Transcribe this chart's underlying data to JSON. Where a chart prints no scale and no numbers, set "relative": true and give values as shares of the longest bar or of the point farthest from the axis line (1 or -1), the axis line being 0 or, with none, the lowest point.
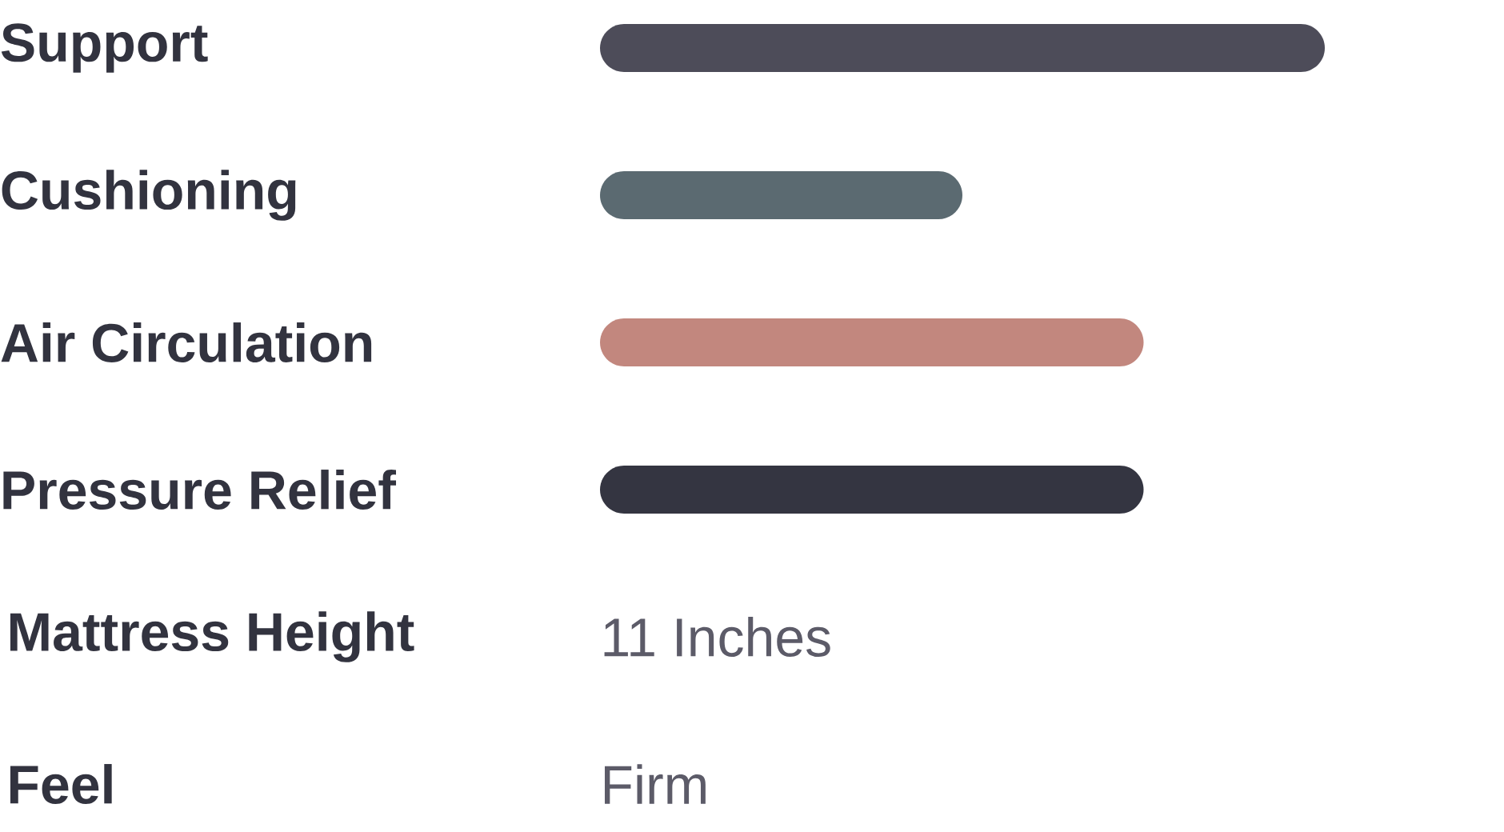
{
  "chart_data": {
    "type": "bar",
    "orientation": "horizontal",
    "relative": true,
    "categories": [
      "Support",
      "Cushioning",
      "Air Circulation",
      "Pressure Relief"
    ],
    "values": [
      1,
      0.5,
      0.75,
      0.75
    ],
    "colors": [
      "#4d4c59",
      "#5b6a71",
      "#c2877e",
      "#343541"
    ],
    "annotations": [
      "Mattress Height",
      "11 Inches",
      "Feel",
      "Firm"
    ]
  }
}
